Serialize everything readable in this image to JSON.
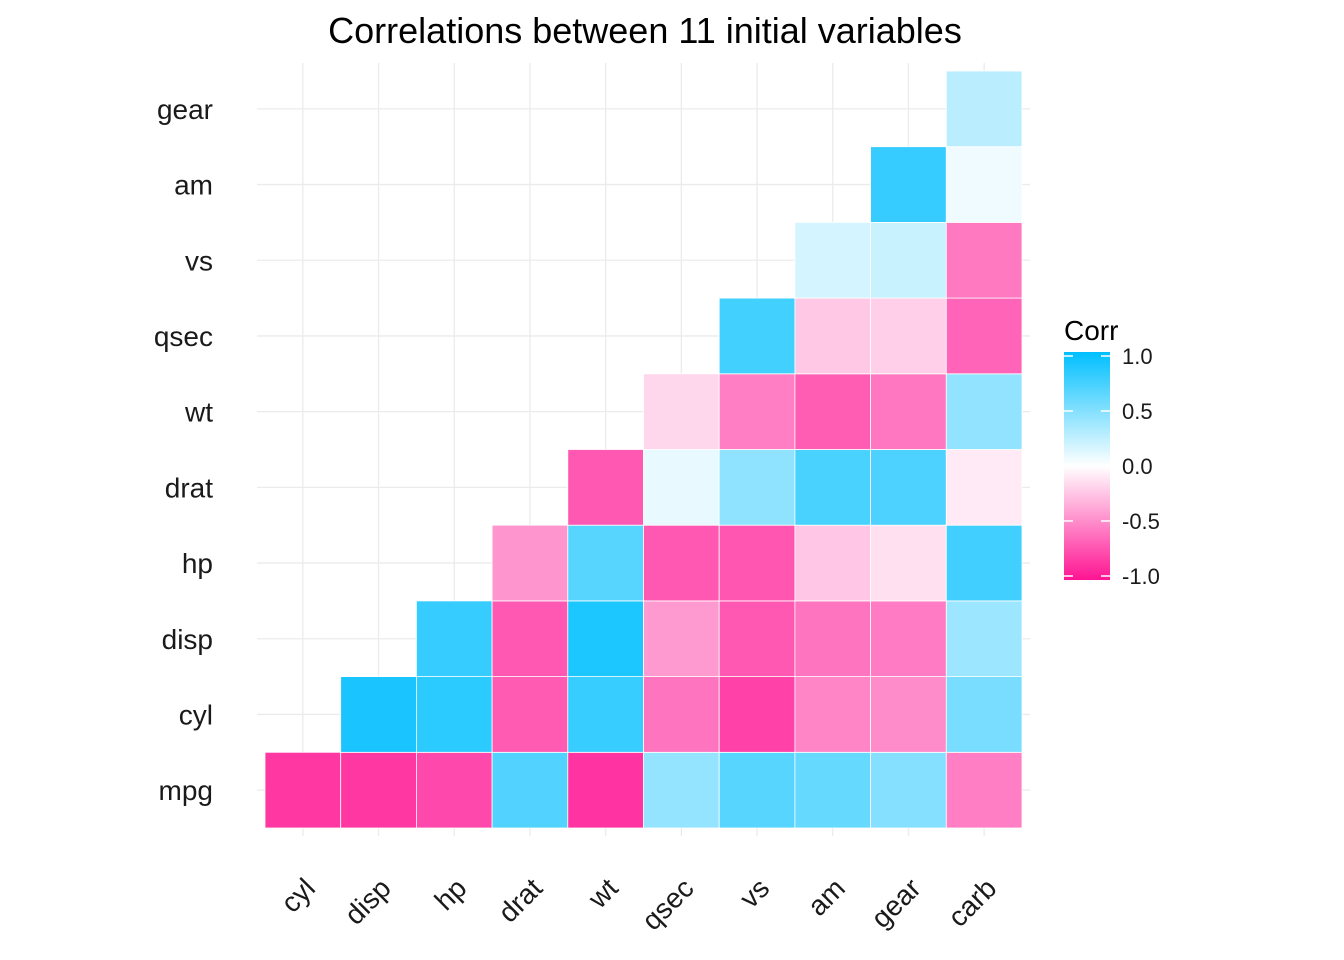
{
  "chart_data": {
    "type": "heatmap",
    "title": "Correlations between 11 initial variables",
    "x_categories": [
      "cyl",
      "disp",
      "hp",
      "drat",
      "wt",
      "qsec",
      "vs",
      "am",
      "gear",
      "carb"
    ],
    "y_categories": [
      "mpg",
      "cyl",
      "disp",
      "hp",
      "drat",
      "wt",
      "qsec",
      "vs",
      "am",
      "gear"
    ],
    "cells": [
      {
        "x": "cyl",
        "y": "mpg",
        "value": -0.85
      },
      {
        "x": "disp",
        "y": "mpg",
        "value": -0.85
      },
      {
        "x": "hp",
        "y": "mpg",
        "value": -0.78
      },
      {
        "x": "drat",
        "y": "mpg",
        "value": 0.68
      },
      {
        "x": "wt",
        "y": "mpg",
        "value": -0.87
      },
      {
        "x": "qsec",
        "y": "mpg",
        "value": 0.42
      },
      {
        "x": "vs",
        "y": "mpg",
        "value": 0.66
      },
      {
        "x": "am",
        "y": "mpg",
        "value": 0.6
      },
      {
        "x": "gear",
        "y": "mpg",
        "value": 0.48
      },
      {
        "x": "carb",
        "y": "mpg",
        "value": -0.55
      },
      {
        "x": "disp",
        "y": "cyl",
        "value": 0.9
      },
      {
        "x": "hp",
        "y": "cyl",
        "value": 0.83
      },
      {
        "x": "drat",
        "y": "cyl",
        "value": -0.7
      },
      {
        "x": "wt",
        "y": "cyl",
        "value": 0.78
      },
      {
        "x": "qsec",
        "y": "cyl",
        "value": -0.59
      },
      {
        "x": "vs",
        "y": "cyl",
        "value": -0.81
      },
      {
        "x": "am",
        "y": "cyl",
        "value": -0.52
      },
      {
        "x": "gear",
        "y": "cyl",
        "value": -0.49
      },
      {
        "x": "carb",
        "y": "cyl",
        "value": 0.53
      },
      {
        "x": "hp",
        "y": "disp",
        "value": 0.79
      },
      {
        "x": "drat",
        "y": "disp",
        "value": -0.71
      },
      {
        "x": "wt",
        "y": "disp",
        "value": 0.89
      },
      {
        "x": "qsec",
        "y": "disp",
        "value": -0.43
      },
      {
        "x": "vs",
        "y": "disp",
        "value": -0.71
      },
      {
        "x": "am",
        "y": "disp",
        "value": -0.59
      },
      {
        "x": "gear",
        "y": "disp",
        "value": -0.56
      },
      {
        "x": "carb",
        "y": "disp",
        "value": 0.39
      },
      {
        "x": "drat",
        "y": "hp",
        "value": -0.45
      },
      {
        "x": "wt",
        "y": "hp",
        "value": 0.66
      },
      {
        "x": "qsec",
        "y": "hp",
        "value": -0.71
      },
      {
        "x": "vs",
        "y": "hp",
        "value": -0.72
      },
      {
        "x": "am",
        "y": "hp",
        "value": -0.24
      },
      {
        "x": "gear",
        "y": "hp",
        "value": -0.13
      },
      {
        "x": "carb",
        "y": "hp",
        "value": 0.75
      },
      {
        "x": "wt",
        "y": "drat",
        "value": -0.71
      },
      {
        "x": "qsec",
        "y": "drat",
        "value": 0.09
      },
      {
        "x": "vs",
        "y": "drat",
        "value": 0.44
      },
      {
        "x": "am",
        "y": "drat",
        "value": 0.71
      },
      {
        "x": "gear",
        "y": "drat",
        "value": 0.7
      },
      {
        "x": "carb",
        "y": "drat",
        "value": -0.09
      },
      {
        "x": "qsec",
        "y": "wt",
        "value": -0.17
      },
      {
        "x": "vs",
        "y": "wt",
        "value": -0.55
      },
      {
        "x": "am",
        "y": "wt",
        "value": -0.69
      },
      {
        "x": "gear",
        "y": "wt",
        "value": -0.58
      },
      {
        "x": "carb",
        "y": "wt",
        "value": 0.43
      },
      {
        "x": "vs",
        "y": "qsec",
        "value": 0.74
      },
      {
        "x": "am",
        "y": "qsec",
        "value": -0.23
      },
      {
        "x": "gear",
        "y": "qsec",
        "value": -0.21
      },
      {
        "x": "carb",
        "y": "qsec",
        "value": -0.66
      },
      {
        "x": "am",
        "y": "vs",
        "value": 0.17
      },
      {
        "x": "gear",
        "y": "vs",
        "value": 0.21
      },
      {
        "x": "carb",
        "y": "vs",
        "value": -0.57
      },
      {
        "x": "gear",
        "y": "am",
        "value": 0.79
      },
      {
        "x": "carb",
        "y": "am",
        "value": 0.06
      },
      {
        "x": "carb",
        "y": "gear",
        "value": 0.27
      }
    ],
    "legend": {
      "title": "Corr",
      "position": "right",
      "breaks": [
        1.0,
        0.5,
        0.0,
        -0.5,
        -1.0
      ],
      "break_labels": [
        "1.0",
        "0.5",
        "0.0",
        "-0.5",
        "-1.0"
      ]
    },
    "value_range": [
      -1,
      1
    ],
    "colors": {
      "high": "#00bfff",
      "mid": "#ffffff",
      "low": "#ff1493",
      "grid": "#ebebeb",
      "tile_border": "#ffffff"
    },
    "grid": true
  }
}
